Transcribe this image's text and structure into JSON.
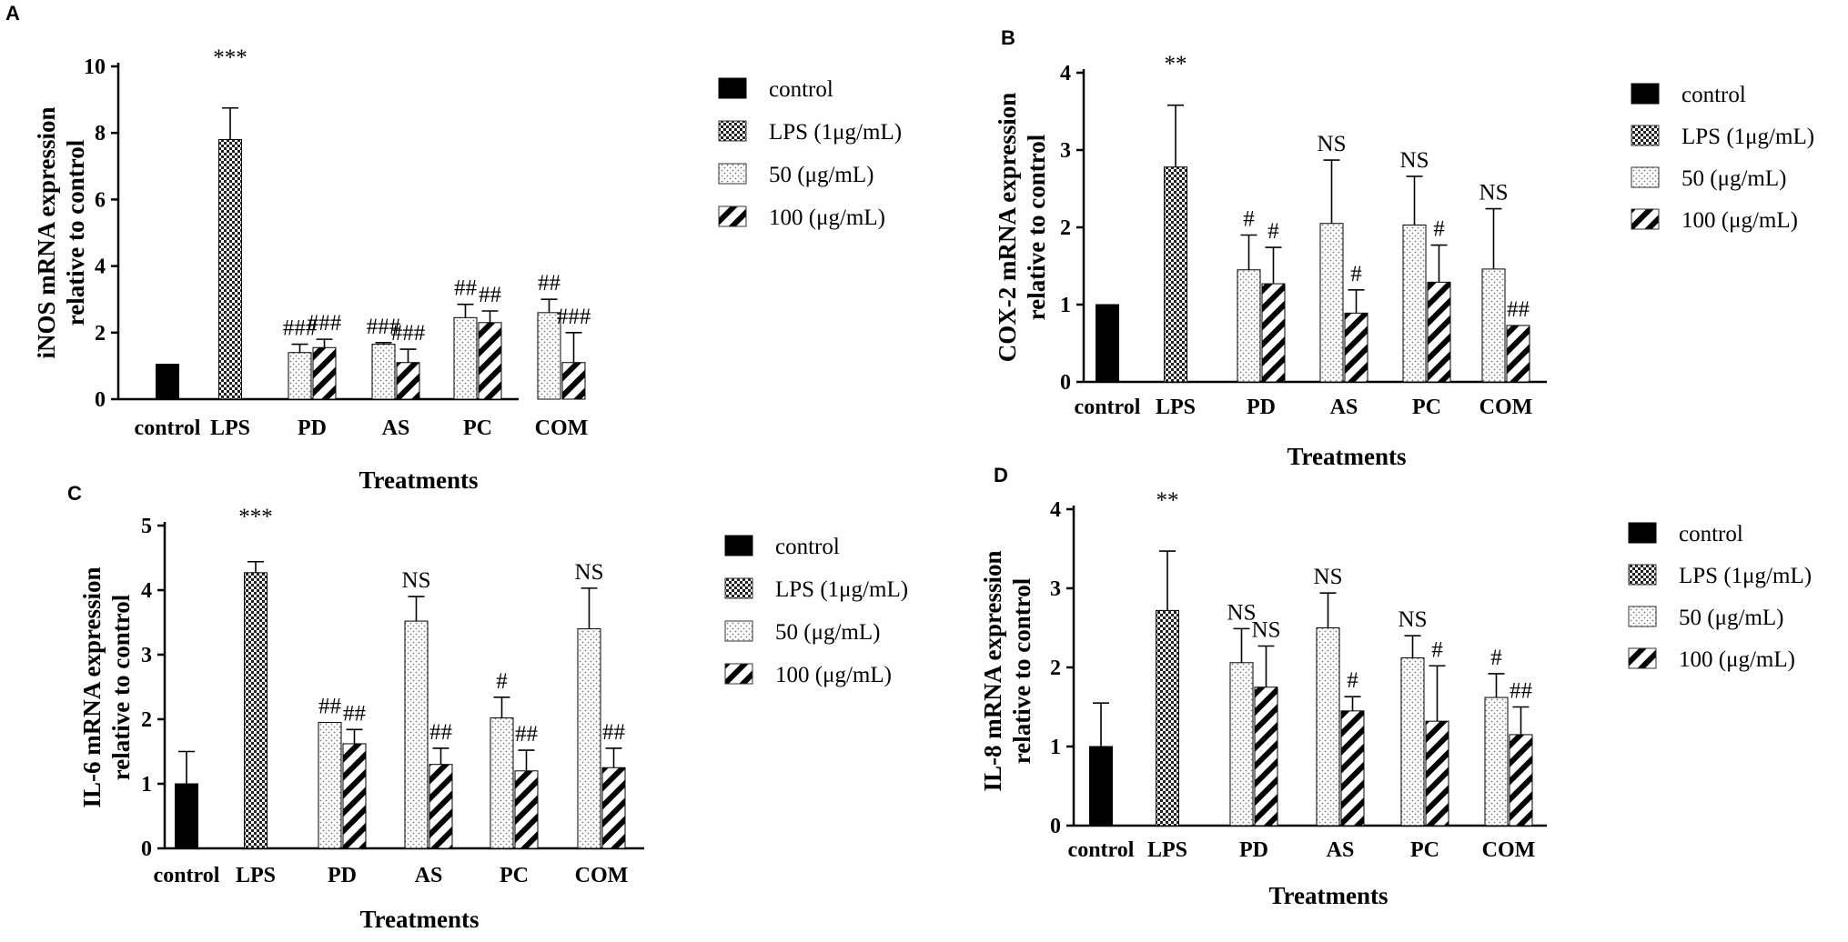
{
  "chart_data": [
    {
      "panel": "A",
      "type": "bar",
      "ylabel_line1": "iNOS mRNA expression",
      "ylabel_line2": "relative to control",
      "xlabel": "Treatments",
      "ylim": [
        0,
        10
      ],
      "yticks": [
        "0",
        "2",
        "4",
        "6",
        "8",
        "10"
      ],
      "categories": [
        "control",
        "LPS",
        "PD",
        "AS",
        "PC",
        "COM"
      ],
      "legend": [
        "control",
        "LPS (1μg/mL)",
        "50 (μg/mL)",
        "100 (μg/mL)"
      ],
      "bars": [
        {
          "category": "control",
          "series": "control",
          "value": 1.05,
          "error": 0,
          "label": ""
        },
        {
          "category": "LPS",
          "series": "LPS (1μg/mL)",
          "value": 7.8,
          "error": 0.95,
          "label": "***"
        },
        {
          "category": "PD",
          "series": "50 (μg/mL)",
          "value": 1.4,
          "error": 0.25,
          "label": "###"
        },
        {
          "category": "PD",
          "series": "100 (μg/mL)",
          "value": 1.55,
          "error": 0.25,
          "label": "###"
        },
        {
          "category": "AS",
          "series": "50 (μg/mL)",
          "value": 1.65,
          "error": 0.05,
          "label": "###"
        },
        {
          "category": "AS",
          "series": "100 (μg/mL)",
          "value": 1.1,
          "error": 0.4,
          "label": "###"
        },
        {
          "category": "PC",
          "series": "50 (μg/mL)",
          "value": 2.45,
          "error": 0.4,
          "label": "##"
        },
        {
          "category": "PC",
          "series": "100 (μg/mL)",
          "value": 2.3,
          "error": 0.35,
          "label": "##"
        },
        {
          "category": "COM",
          "series": "50 (μg/mL)",
          "value": 2.6,
          "error": 0.4,
          "label": "##"
        },
        {
          "category": "COM",
          "series": "100 (μg/mL)",
          "value": 1.1,
          "error": 0.9,
          "label": "###"
        }
      ]
    },
    {
      "panel": "B",
      "type": "bar",
      "ylabel_line1": "COX-2 mRNA expression",
      "ylabel_line2": "relative to control",
      "xlabel": "Treatments",
      "ylim": [
        0,
        4
      ],
      "yticks": [
        "0",
        "1",
        "2",
        "3",
        "4"
      ],
      "categories": [
        "control",
        "LPS",
        "PD",
        "AS",
        "PC",
        "COM"
      ],
      "legend": [
        "control",
        "LPS (1μg/mL)",
        "50 (μg/mL)",
        "100 (μg/mL)"
      ],
      "bars": [
        {
          "category": "control",
          "series": "control",
          "value": 1.0,
          "error": 0,
          "label": ""
        },
        {
          "category": "LPS",
          "series": "LPS (1μg/mL)",
          "value": 2.78,
          "error": 0.8,
          "label": "**"
        },
        {
          "category": "PD",
          "series": "50 (μg/mL)",
          "value": 1.45,
          "error": 0.45,
          "label": "#"
        },
        {
          "category": "PD",
          "series": "100 (μg/mL)",
          "value": 1.27,
          "error": 0.47,
          "label": "#"
        },
        {
          "category": "AS",
          "series": "50 (μg/mL)",
          "value": 2.05,
          "error": 0.82,
          "label": "NS"
        },
        {
          "category": "AS",
          "series": "100 (μg/mL)",
          "value": 0.89,
          "error": 0.3,
          "label": "#"
        },
        {
          "category": "PC",
          "series": "50 (μg/mL)",
          "value": 2.03,
          "error": 0.63,
          "label": "NS"
        },
        {
          "category": "PC",
          "series": "100 (μg/mL)",
          "value": 1.29,
          "error": 0.48,
          "label": "#"
        },
        {
          "category": "COM",
          "series": "50 (μg/mL)",
          "value": 1.46,
          "error": 0.78,
          "label": "NS"
        },
        {
          "category": "COM",
          "series": "100 (μg/mL)",
          "value": 0.73,
          "error": 0,
          "label": "##"
        }
      ]
    },
    {
      "panel": "C",
      "type": "bar",
      "ylabel_line1": "IL-6 mRNA expression",
      "ylabel_line2": "relative to control",
      "xlabel": "Treatments",
      "ylim": [
        0,
        5
      ],
      "yticks": [
        "0",
        "1",
        "2",
        "3",
        "4",
        "5"
      ],
      "categories": [
        "control",
        "LPS",
        "PD",
        "AS",
        "PC",
        "COM"
      ],
      "legend": [
        "control",
        "LPS (1μg/mL)",
        "50 (μg/mL)",
        "100 (μg/mL)"
      ],
      "bars": [
        {
          "category": "control",
          "series": "control",
          "value": 1.0,
          "error": 0.5,
          "label": ""
        },
        {
          "category": "LPS",
          "series": "LPS (1μg/mL)",
          "value": 4.27,
          "error": 0.17,
          "label": "***"
        },
        {
          "category": "PD",
          "series": "50 (μg/mL)",
          "value": 1.95,
          "error": 0,
          "label": "##"
        },
        {
          "category": "PD",
          "series": "100 (μg/mL)",
          "value": 1.62,
          "error": 0.22,
          "label": "##"
        },
        {
          "category": "AS",
          "series": "50 (μg/mL)",
          "value": 3.52,
          "error": 0.38,
          "label": "NS"
        },
        {
          "category": "AS",
          "series": "100 (μg/mL)",
          "value": 1.3,
          "error": 0.25,
          "label": "##"
        },
        {
          "category": "PC",
          "series": "50 (μg/mL)",
          "value": 2.02,
          "error": 0.32,
          "label": "#"
        },
        {
          "category": "PC",
          "series": "100 (μg/mL)",
          "value": 1.2,
          "error": 0.32,
          "label": "##"
        },
        {
          "category": "COM",
          "series": "50 (μg/mL)",
          "value": 3.4,
          "error": 0.63,
          "label": "NS"
        },
        {
          "category": "COM",
          "series": "100 (μg/mL)",
          "value": 1.25,
          "error": 0.3,
          "label": "##"
        }
      ]
    },
    {
      "panel": "D",
      "type": "bar",
      "ylabel_line1": "IL-8 mRNA expression",
      "ylabel_line2": "relative to control",
      "xlabel": "Treatments",
      "ylim": [
        0,
        4
      ],
      "yticks": [
        "0",
        "1",
        "2",
        "3",
        "4"
      ],
      "categories": [
        "control",
        "LPS",
        "PD",
        "AS",
        "PC",
        "COM"
      ],
      "legend": [
        "control",
        "LPS (1μg/mL)",
        "50 (μg/mL)",
        "100 (μg/mL)"
      ],
      "bars": [
        {
          "category": "control",
          "series": "control",
          "value": 1.0,
          "error": 0.55,
          "label": ""
        },
        {
          "category": "LPS",
          "series": "LPS (1μg/mL)",
          "value": 2.72,
          "error": 0.75,
          "label": "**"
        },
        {
          "category": "PD",
          "series": "50 (μg/mL)",
          "value": 2.06,
          "error": 0.43,
          "label": "NS"
        },
        {
          "category": "PD",
          "series": "100 (μg/mL)",
          "value": 1.75,
          "error": 0.52,
          "label": "NS"
        },
        {
          "category": "AS",
          "series": "50 (μg/mL)",
          "value": 2.5,
          "error": 0.44,
          "label": "NS"
        },
        {
          "category": "AS",
          "series": "100 (μg/mL)",
          "value": 1.45,
          "error": 0.18,
          "label": "#"
        },
        {
          "category": "PC",
          "series": "50 (μg/mL)",
          "value": 2.12,
          "error": 0.28,
          "label": "NS"
        },
        {
          "category": "PC",
          "series": "100 (μg/mL)",
          "value": 1.32,
          "error": 0.7,
          "label": "#"
        },
        {
          "category": "COM",
          "series": "50 (μg/mL)",
          "value": 1.62,
          "error": 0.3,
          "label": "#"
        },
        {
          "category": "COM",
          "series": "100 (μg/mL)",
          "value": 1.15,
          "error": 0.35,
          "label": "##"
        }
      ]
    }
  ]
}
